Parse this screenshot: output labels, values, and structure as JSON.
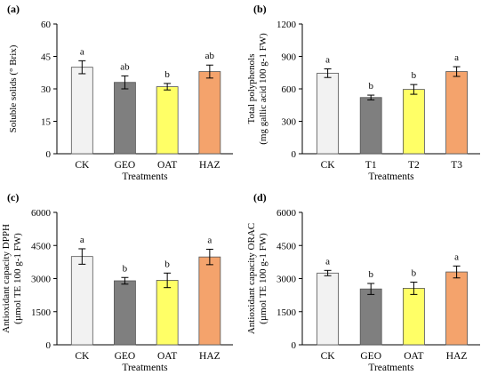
{
  "chart_data": [
    {
      "type": "bar",
      "panel_label": "(a)",
      "categories": [
        "CK",
        "GEO",
        "OAT",
        "HAZ"
      ],
      "values": [
        40,
        33,
        31,
        38
      ],
      "errors": [
        3,
        3,
        1.5,
        3
      ],
      "significance": [
        "a",
        "ab",
        "b",
        "ab"
      ],
      "xlabel": "Treatments",
      "ylabel_lines": [
        "Soluble solids (° Brix)"
      ],
      "ylim": [
        0,
        60
      ],
      "yticks": [
        0,
        15,
        30,
        45,
        60
      ],
      "bar_colors": [
        "#f2f2f2",
        "#7f7f7f",
        "#ffff66",
        "#f4a36c"
      ],
      "grid": false
    },
    {
      "type": "bar",
      "panel_label": "(b)",
      "categories": [
        "CK",
        "T1",
        "T2",
        "T3"
      ],
      "values": [
        745,
        520,
        595,
        760
      ],
      "errors": [
        40,
        22,
        45,
        45
      ],
      "significance": [
        "a",
        "b",
        "b",
        "a"
      ],
      "xlabel": "Treatments",
      "ylabel_lines": [
        "Total polyphenols",
        "(mg gallic acid 100 g-1 FW)"
      ],
      "ylim": [
        0,
        1200
      ],
      "yticks": [
        0,
        300,
        600,
        900,
        1200
      ],
      "bar_colors": [
        "#f2f2f2",
        "#7f7f7f",
        "#ffff66",
        "#f4a36c"
      ],
      "grid": false
    },
    {
      "type": "bar",
      "panel_label": "(c)",
      "categories": [
        "CK",
        "GEO",
        "OAT",
        "HAZ"
      ],
      "values": [
        4000,
        2900,
        2920,
        3980
      ],
      "errors": [
        350,
        150,
        330,
        350
      ],
      "significance": [
        "a",
        "b",
        "b",
        "a"
      ],
      "xlabel": "Treatments",
      "ylabel_lines": [
        "Antioxidant capacity DPPH",
        "(µmol TE 100 g-1 FW)"
      ],
      "ylim": [
        0,
        6000
      ],
      "yticks": [
        0,
        1500,
        3000,
        4500,
        6000
      ],
      "bar_colors": [
        "#f2f2f2",
        "#7f7f7f",
        "#ffff66",
        "#f4a36c"
      ],
      "grid": false
    },
    {
      "type": "bar",
      "panel_label": "(d)",
      "categories": [
        "CK",
        "GEO",
        "OAT",
        "HAZ"
      ],
      "values": [
        3250,
        2530,
        2560,
        3300
      ],
      "errors": [
        120,
        250,
        280,
        270
      ],
      "significance": [
        "a",
        "b",
        "b",
        "a"
      ],
      "xlabel": "Treatments",
      "ylabel_lines": [
        "Antioxidant capacity ORAC",
        "(µmol TE 100 g-1 FW)"
      ],
      "ylim": [
        0,
        6000
      ],
      "yticks": [
        0,
        1500,
        3000,
        4500,
        6000
      ],
      "bar_colors": [
        "#f2f2f2",
        "#7f7f7f",
        "#ffff66",
        "#f4a36c"
      ],
      "grid": false
    }
  ]
}
